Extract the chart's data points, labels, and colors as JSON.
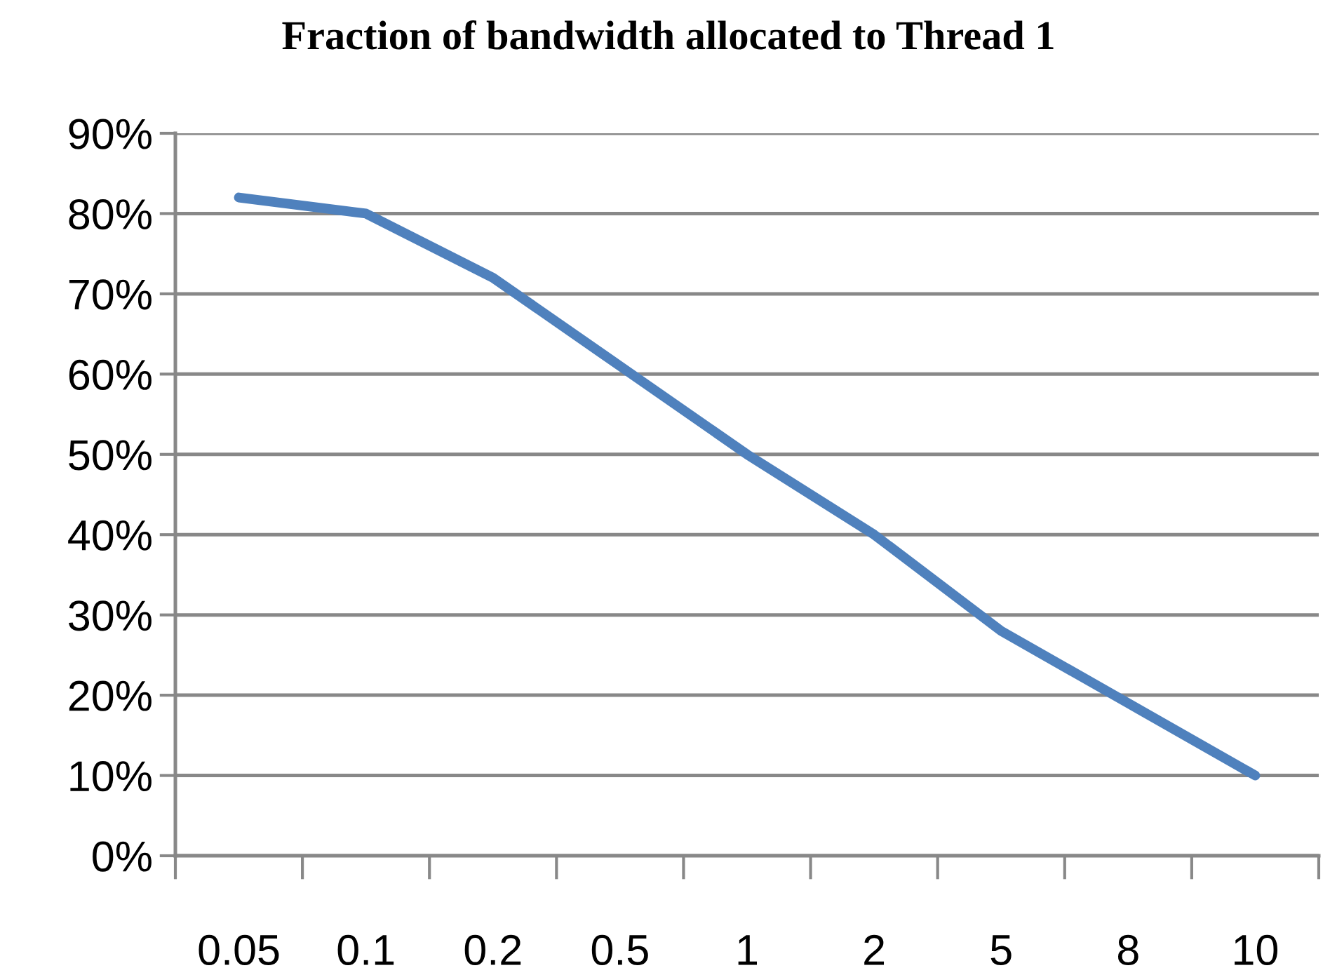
{
  "chart_data": {
    "type": "line",
    "title": "Fraction of bandwidth allocated to Thread 1",
    "categories": [
      "0.05",
      "0.1",
      "0.2",
      "0.5",
      "1",
      "2",
      "5",
      "8",
      "10"
    ],
    "series": [
      {
        "color": "#4f81bd",
        "values": [
          82,
          80,
          72,
          61,
          50,
          40,
          28,
          19,
          10
        ]
      }
    ],
    "ylim": [
      0,
      90
    ],
    "yticks": [
      {
        "value": 0,
        "label": "0%"
      },
      {
        "value": 10,
        "label": "10%"
      },
      {
        "value": 20,
        "label": "20%"
      },
      {
        "value": 30,
        "label": "30%"
      },
      {
        "value": 40,
        "label": "40%"
      },
      {
        "value": 50,
        "label": "50%"
      },
      {
        "value": 60,
        "label": "60%"
      },
      {
        "value": 70,
        "label": "70%"
      },
      {
        "value": 80,
        "label": "80%"
      },
      {
        "value": 90,
        "label": "90%"
      }
    ],
    "grid": "y",
    "legend": false,
    "marker": "none",
    "line_style": "solid"
  }
}
